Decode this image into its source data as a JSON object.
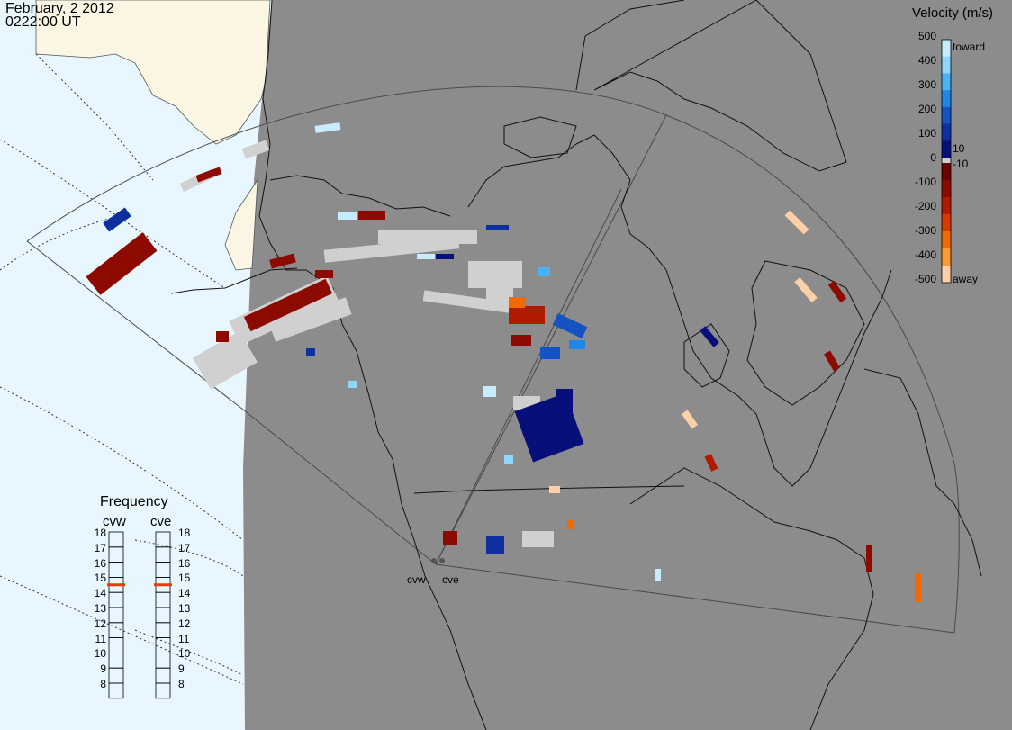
{
  "header": {
    "date": "February, 2 2012",
    "time": "0222:00 UT"
  },
  "velocity_scale": {
    "title": "Velocity (m/s)",
    "tick_labels": [
      "500",
      "400",
      "300",
      "200",
      "100",
      "10",
      "0",
      "-10",
      "-100",
      "-200",
      "-300",
      "-400",
      "-500"
    ],
    "toward_label": "toward",
    "away_label": "away",
    "colors_toward": [
      "#c8ecff",
      "#8ed6ff",
      "#49b4f5",
      "#1f86e6",
      "#1552c4",
      "#0d2fa0",
      "#07107a"
    ],
    "colors_away": [
      "#6b0000",
      "#8c0a00",
      "#b01a00",
      "#d63a00",
      "#f06a00",
      "#ff9a30",
      "#ffd0a8"
    ]
  },
  "frequency_panel": {
    "title": "Frequency",
    "radars": [
      "cvw",
      "cve"
    ],
    "scale": [
      "18",
      "17",
      "16",
      "15",
      "14",
      "13",
      "12",
      "11",
      "10",
      "9",
      "8"
    ],
    "cvw_mhz": 15,
    "cve_mhz": 15,
    "marker_color": "#e04000"
  },
  "radar_sites": [
    "cvw",
    "cve"
  ],
  "colors": {
    "background": "#8c8c8c",
    "ocean": "#e8f6ff",
    "daylight_land": "#fbf6e4",
    "ground_scatter": "#d0d0d0"
  }
}
